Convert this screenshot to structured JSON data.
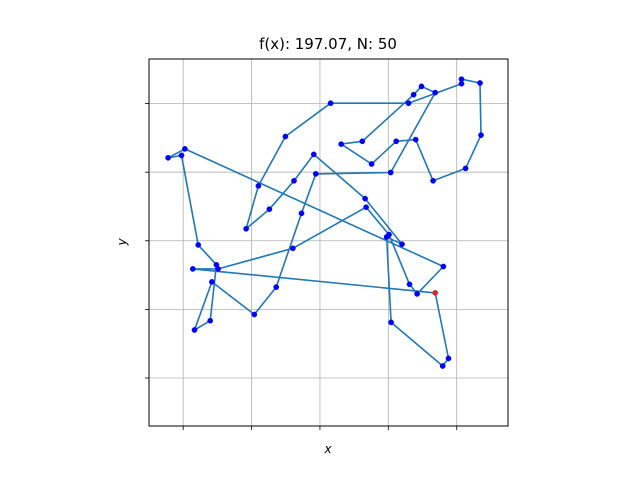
{
  "chart_data": {
    "type": "line",
    "title": "f(x): 197.07, N: 50",
    "xlabel": "x",
    "ylabel": "y",
    "xlim": [
      -0.05,
      1.0
    ],
    "ylim": [
      -0.07,
      1.0
    ],
    "xticks": [
      0.05,
      0.25,
      0.45,
      0.65,
      0.85
    ],
    "yticks": [
      0.07,
      0.27,
      0.47,
      0.67,
      0.87
    ],
    "grid": true,
    "colors": {
      "line": "#1f77b4",
      "point": "#0000ff",
      "start": "#d62728"
    },
    "series": [
      {
        "x": [
          0.787,
          0.826,
          0.809,
          0.658,
          0.645,
          0.69,
          0.582,
          0.432,
          0.374,
          0.302,
          0.234,
          0.27,
          0.349,
          0.481,
          0.709,
          0.864,
          0.864,
          0.918,
          0.921,
          0.876,
          0.781,
          0.73,
          0.673,
          0.601,
          0.512,
          0.574,
          0.724,
          0.747,
          0.787,
          0.657,
          0.438,
          0.396,
          0.322,
          0.258,
          0.134,
          0.083,
          0.129,
          0.147,
          0.094,
          0.045,
          0.006,
          0.055,
          0.811,
          0.734,
          0.712,
          0.652,
          0.585,
          0.371,
          0.152,
          0.078
        ],
        "y": [
          0.318,
          0.127,
          0.105,
          0.232,
          0.481,
          0.46,
          0.593,
          0.722,
          0.645,
          0.562,
          0.505,
          0.63,
          0.774,
          0.871,
          0.871,
          0.928,
          0.941,
          0.93,
          0.778,
          0.681,
          0.645,
          0.765,
          0.76,
          0.694,
          0.752,
          0.76,
          0.896,
          0.92,
          0.902,
          0.669,
          0.665,
          0.55,
          0.335,
          0.255,
          0.35,
          0.21,
          0.237,
          0.4,
          0.458,
          0.719,
          0.712,
          0.738,
          0.395,
          0.315,
          0.343,
          0.488,
          0.568,
          0.448,
          0.388,
          0.388
        ]
      }
    ]
  }
}
